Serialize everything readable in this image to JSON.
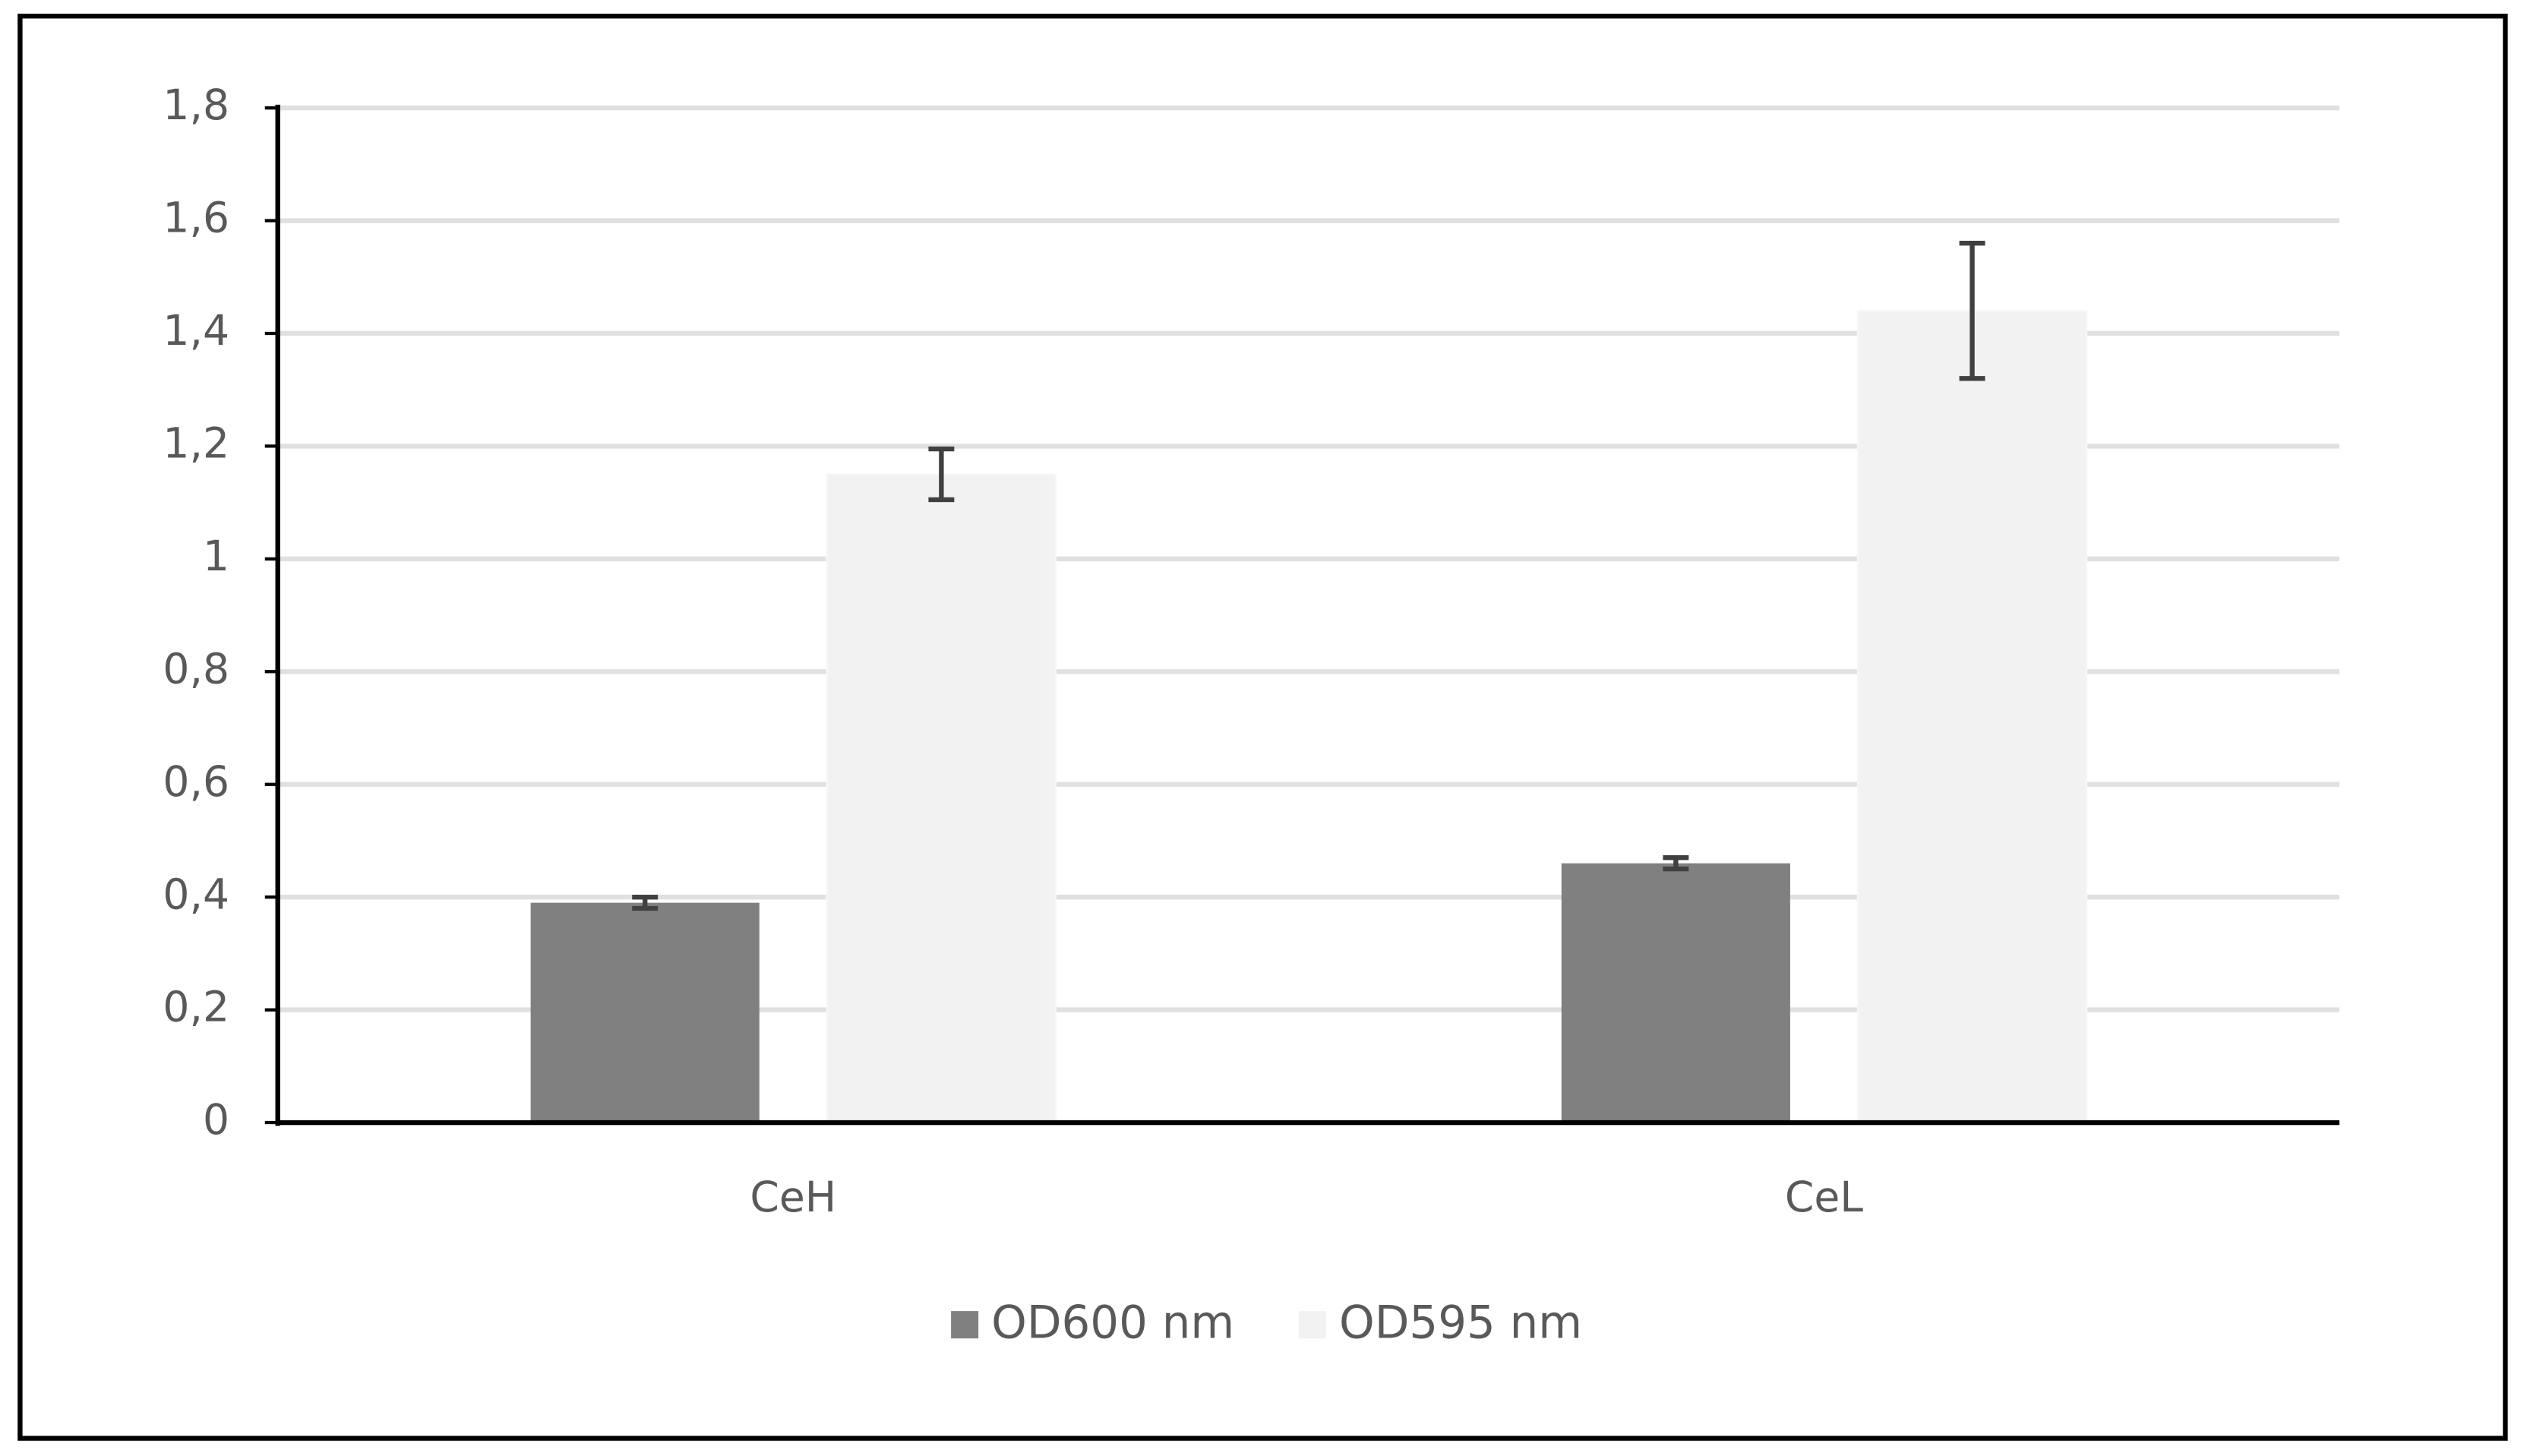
{
  "chart_data": {
    "type": "bar",
    "categories": [
      "CeH",
      "CeL"
    ],
    "series": [
      {
        "name": "OD600 nm",
        "color": "#808080",
        "values": [
          0.39,
          0.46
        ],
        "errors": [
          0.01,
          0.01
        ]
      },
      {
        "name": "OD595 nm",
        "color": "#f2f2f2",
        "values": [
          1.15,
          1.44
        ],
        "errors": [
          0.045,
          0.12
        ]
      }
    ],
    "ylim": [
      0,
      1.8
    ],
    "yticks": [
      0,
      {
        "value": 0.2,
        "label": "0,2"
      },
      {
        "value": 0.4,
        "label": "0,4"
      },
      {
        "value": 0.6,
        "label": "0,6"
      },
      {
        "value": 0.8,
        "label": "0,8"
      },
      1,
      {
        "value": 1.2,
        "label": "1,2"
      },
      {
        "value": 1.4,
        "label": "1,4"
      },
      {
        "value": 1.6,
        "label": "1,6"
      },
      {
        "value": 1.8,
        "label": "1,8"
      }
    ],
    "grid": true,
    "legend": "bottom"
  }
}
